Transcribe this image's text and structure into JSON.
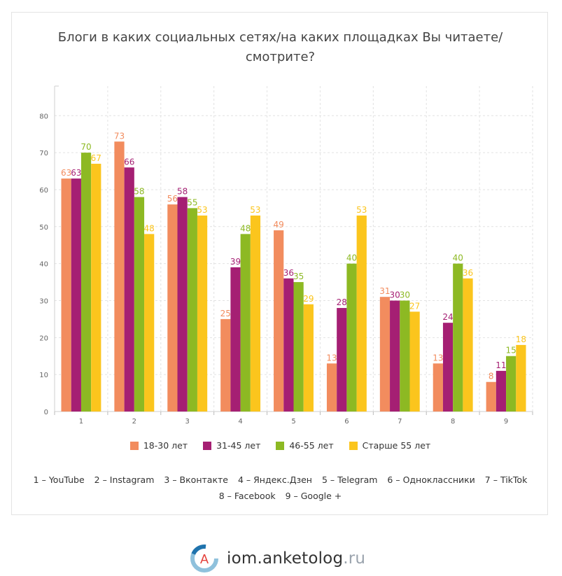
{
  "chart_data": {
    "type": "bar",
    "title": "Блоги в каких социальных сетях/на каких площадках Вы читаете/ смотрите?",
    "title_lines": [
      "Блоги в каких социальных сетях/на каких площадках Вы читаете/",
      "смотрите?"
    ],
    "categories": [
      "1",
      "2",
      "3",
      "4",
      "5",
      "6",
      "7",
      "8",
      "9"
    ],
    "series": [
      {
        "name": "18-30 лет",
        "color": "#f28c5e",
        "values": [
          63,
          73,
          56,
          25,
          49,
          13,
          31,
          13,
          8
        ]
      },
      {
        "name": "31-45 лет",
        "color": "#a51f73",
        "values": [
          63,
          66,
          58,
          39,
          36,
          28,
          30,
          24,
          11
        ]
      },
      {
        "name": "46-55 лет",
        "color": "#8db923",
        "values": [
          70,
          58,
          55,
          48,
          35,
          40,
          30,
          40,
          15
        ]
      },
      {
        "name": "Старше 55 лет",
        "color": "#fbc51d",
        "values": [
          67,
          48,
          53,
          53,
          29,
          53,
          27,
          36,
          18
        ]
      }
    ],
    "yticks": [
      0,
      10,
      20,
      30,
      40,
      50,
      60,
      70,
      80
    ],
    "ylim": [
      0,
      88
    ],
    "grid": true,
    "legend_position": "bottom",
    "category_notes": [
      [
        "1 – YouTube",
        "2 – Instagram",
        "3 – Вконтакте",
        "4 – Яндекс.Дзен",
        "5 – Telegram",
        "6 – Одноклассники",
        "7 – TikTok"
      ],
      [
        "8 – Facebook",
        "9 – Google +"
      ]
    ]
  },
  "logo": {
    "name": "iom.anketolog",
    "tld": ".ru",
    "letter": "A"
  }
}
